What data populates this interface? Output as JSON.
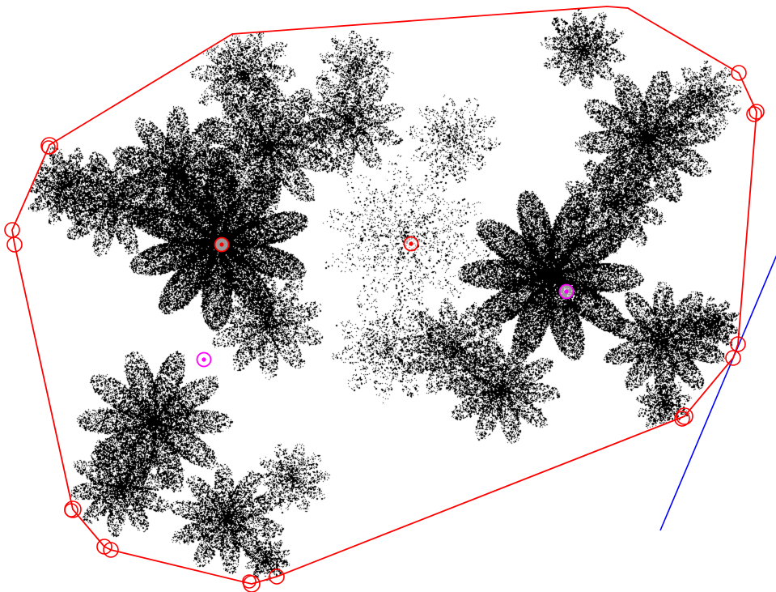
{
  "figure": {
    "kind": "fractal-convex-hull-diagram",
    "background_color": "#ffffff",
    "fractal_color": "#000000",
    "hull_color": "#ff0000",
    "hull_vertex_marker_color": "#ff0000",
    "centroid_marker_color": "#ff0000",
    "attractor_marker_color": "#ff00ff",
    "line_color": "#0000ff",
    "hull_vertex_count": 18,
    "centroid_marker_count": 2,
    "attractor_marker_count": 2,
    "blob_count": 2
  }
}
